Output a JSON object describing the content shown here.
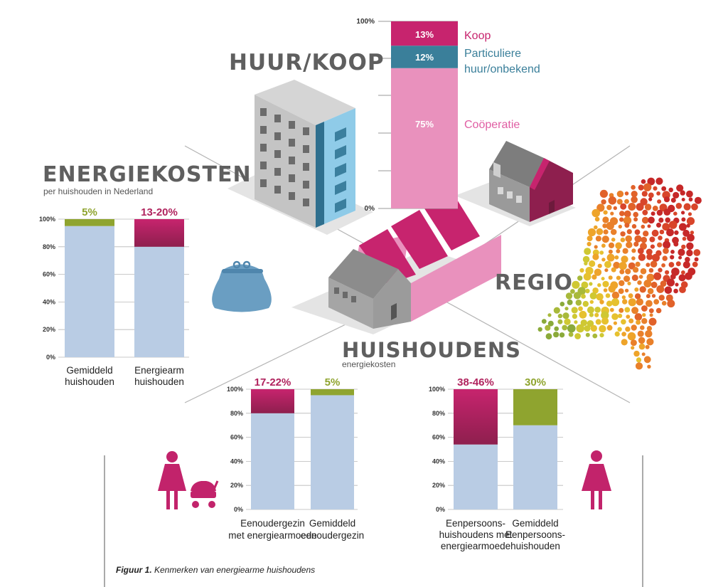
{
  "headings": {
    "huur_koop": "HUUR/KOOP",
    "energiekosten": "ENERGIEKOSTEN",
    "energiekosten_sub": "per huishouden in Nederland",
    "regio": "REGIO",
    "huishoudens": "HUISHOUDENS",
    "huishoudens_sub": "energiekosten"
  },
  "caption": {
    "label": "Figuur 1.",
    "text": " Kenmerken van energiearme huishoudens"
  },
  "colors": {
    "base_blue": "#b9cce4",
    "magenta": "#c7246e",
    "magenta_dark": "#8e1f4e",
    "olive": "#8fa42f",
    "pink_light": "#e991bd",
    "teal": "#3a7f9a",
    "gray_text": "#5f5f5f",
    "purse": "#6a9ec2"
  },
  "icons": [
    "apartment-building-icon",
    "row-house-icon",
    "pink-house-icon",
    "purse-icon",
    "netherlands-map-icon",
    "mother-with-stroller-icon",
    "woman-icon"
  ],
  "chart_data": [
    {
      "id": "huur-koop",
      "type": "bar",
      "stacked": true,
      "ylim": [
        0,
        100
      ],
      "ticks": [
        "100%",
        "0%"
      ],
      "segments": [
        {
          "name": "Coöperatie",
          "value": 75,
          "label": "75%",
          "color": "#e991bd",
          "legend_color": "#e05ea3"
        },
        {
          "name": "Particuliere huur/onbekend",
          "legend_lines": [
            "Particuliere",
            "huur/onbekend"
          ],
          "value": 12,
          "label": "12%",
          "color": "#3a7f9a",
          "legend_color": "#3a7f9a"
        },
        {
          "name": "Koop",
          "value": 13,
          "label": "13%",
          "color": "#c7246e",
          "legend_color": "#c7246e"
        }
      ]
    },
    {
      "id": "energiekosten",
      "type": "bar",
      "stacked": true,
      "ylim": [
        0,
        100
      ],
      "ticks": [
        "0%",
        "20%",
        "40%",
        "60%",
        "80%",
        "100%"
      ],
      "bars": [
        {
          "category": "Gemiddeld huishouden",
          "lines": [
            "Gemiddeld",
            "huishouden"
          ],
          "base": 95,
          "top": 5,
          "top_label": "5%",
          "top_color": "olive",
          "label_color": "#8fa42f"
        },
        {
          "category": "Energiearm huishouden",
          "lines": [
            "Energiearm",
            "huishouden"
          ],
          "base": 80,
          "top": 20,
          "top_label": "13-20%",
          "top_color": "magenta",
          "label_color": "#b0245e"
        }
      ]
    },
    {
      "id": "eenouder",
      "type": "bar",
      "stacked": true,
      "ylim": [
        0,
        100
      ],
      "ticks": [
        "0%",
        "20%",
        "40%",
        "60%",
        "80%",
        "100%"
      ],
      "bars": [
        {
          "category": "Eenoudergezin met energiearmoede",
          "lines": [
            "Eenoudergezin",
            "met energiearmoede"
          ],
          "base": 80,
          "top": 20,
          "top_label": "17-22%",
          "top_color": "magenta",
          "label_color": "#b0245e"
        },
        {
          "category": "Gemiddeld eenoudergezin",
          "lines": [
            "Gemiddeld",
            "eenoudergezin"
          ],
          "base": 95,
          "top": 5,
          "top_label": "5%",
          "top_color": "olive",
          "label_color": "#8fa42f"
        }
      ]
    },
    {
      "id": "eenpersoons",
      "type": "bar",
      "stacked": true,
      "ylim": [
        0,
        100
      ],
      "ticks": [
        "0%",
        "20%",
        "40%",
        "60%",
        "80%",
        "100%"
      ],
      "bars": [
        {
          "category": "Eenpersoons-huishoudens met energiearmoede",
          "lines": [
            "Eenpersoons-",
            "huishoudens met",
            "energiearmoede"
          ],
          "base": 54,
          "top": 46,
          "top_label": "38-46%",
          "top_color": "magenta",
          "label_color": "#b0245e"
        },
        {
          "category": "Gemiddeld Eenpersoons-huishouden",
          "lines": [
            "Gemiddeld",
            "Eenpersoons-",
            "huishouden"
          ],
          "base": 70,
          "top": 30,
          "top_label": "30%",
          "top_color": "olive",
          "label_color": "#8fa42f"
        }
      ]
    }
  ]
}
